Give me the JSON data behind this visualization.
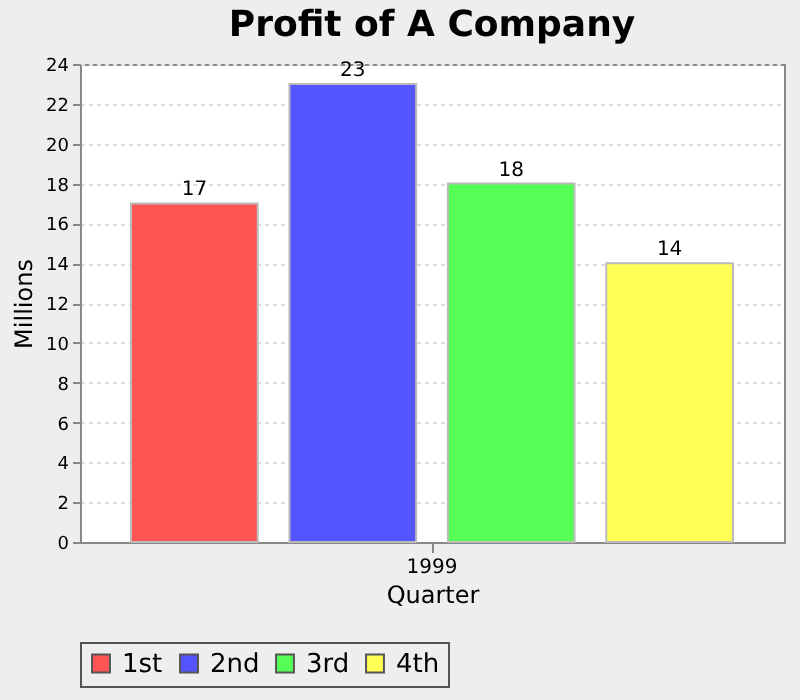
{
  "chart_data": {
    "type": "bar",
    "title": "Profit of A Company",
    "xlabel": "Quarter",
    "ylabel": "Millions",
    "categories": [
      "1999"
    ],
    "series": [
      {
        "name": "1st",
        "color": "#ff5555",
        "values": [
          17
        ]
      },
      {
        "name": "2nd",
        "color": "#5555ff",
        "values": [
          23
        ]
      },
      {
        "name": "3rd",
        "color": "#55ff55",
        "values": [
          18
        ]
      },
      {
        "name": "4th",
        "color": "#ffff55",
        "values": [
          14
        ]
      }
    ],
    "ylim": [
      0,
      24
    ],
    "yticks": [
      0,
      2,
      4,
      6,
      8,
      10,
      12,
      14,
      16,
      18,
      20,
      22,
      24
    ],
    "grid": "y",
    "legend": "bottom",
    "data_labels": true
  }
}
